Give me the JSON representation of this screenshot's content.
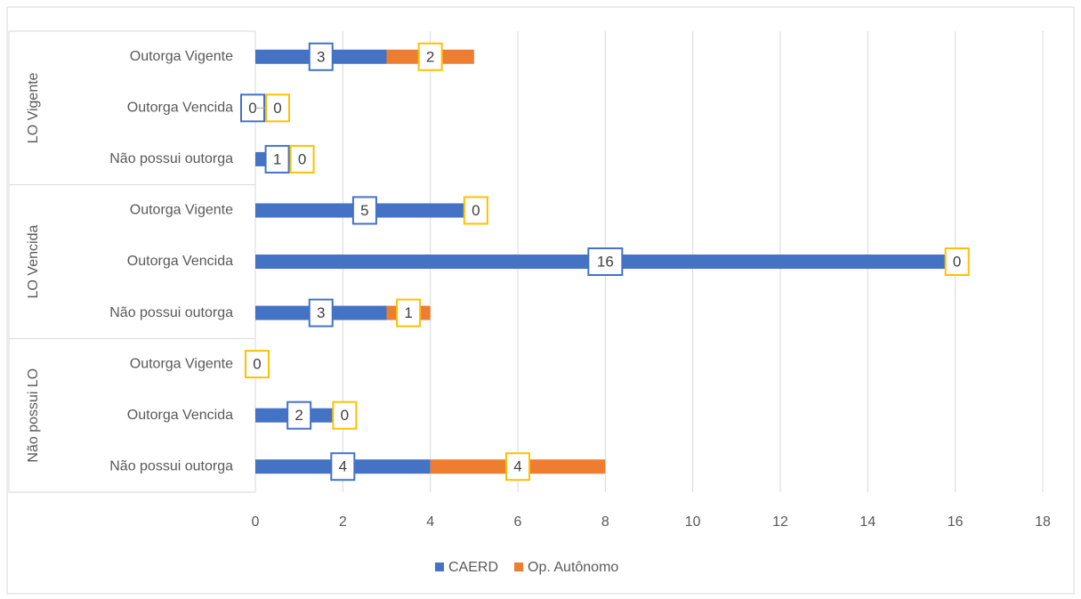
{
  "chart_data": {
    "type": "bar",
    "orientation": "horizontal",
    "stacked": true,
    "groups": [
      {
        "label": "LO Vigente",
        "categories": [
          "Outorga Vigente",
          "Outorga Vencida",
          "Não possui outorga"
        ]
      },
      {
        "label": "LO Vencida",
        "categories": [
          "Outorga Vigente",
          "Outorga Vencida",
          "Não possui outorga"
        ]
      },
      {
        "label": "Não possui LO",
        "categories": [
          "Outorga Vigente",
          "Outorga Vencida",
          "Não possui outorga"
        ]
      }
    ],
    "series": [
      {
        "name": "CAERD",
        "color": "#4472c4",
        "label_border": "#4472c4",
        "values": [
          3,
          0,
          1,
          5,
          16,
          3,
          null,
          2,
          4
        ]
      },
      {
        "name": "Op. Autônomo",
        "color": "#ed7d31",
        "label_border": "#ffc000",
        "values": [
          2,
          0,
          0,
          0,
          0,
          1,
          0,
          0,
          4
        ]
      }
    ],
    "xlim": [
      0,
      18
    ],
    "xticks": [
      0,
      2,
      4,
      6,
      8,
      10,
      12,
      14,
      16,
      18
    ],
    "grid": true,
    "legend": "bottom"
  }
}
